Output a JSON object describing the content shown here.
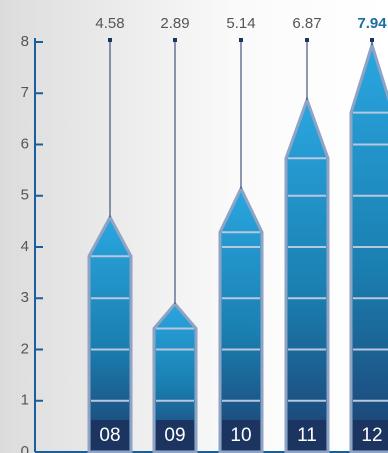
{
  "chart_data": {
    "type": "bar",
    "categories": [
      "08",
      "09",
      "10",
      "11",
      "12"
    ],
    "values": [
      4.58,
      2.89,
      5.14,
      6.87,
      7.94
    ],
    "ylim": [
      0,
      8
    ],
    "yticks": [
      0,
      1,
      2,
      3,
      4,
      5,
      6,
      7,
      8
    ],
    "color": "#1d8fc8"
  }
}
